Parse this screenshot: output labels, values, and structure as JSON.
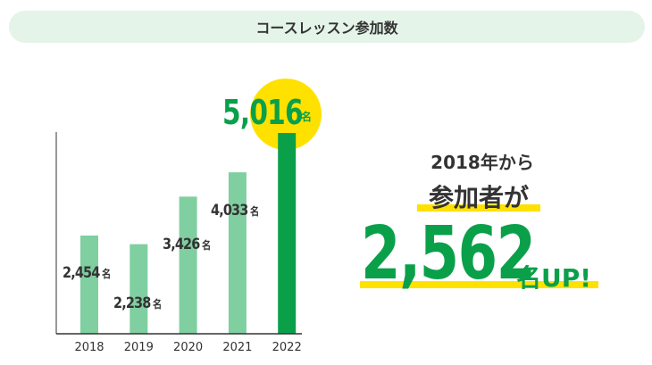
{
  "header": {
    "title": "コースレッスン参加数"
  },
  "chart_data": {
    "type": "bar",
    "categories": [
      "2018",
      "2019",
      "2020",
      "2021",
      "2022"
    ],
    "values": [
      2454,
      2238,
      3426,
      4033,
      5016
    ],
    "value_labels": [
      "2,454",
      "2,238",
      "3,426",
      "4,033",
      "5,016"
    ],
    "unit": "名",
    "highlight": "2022",
    "colors": {
      "bar": "#7fcfa0",
      "highlight": "#0aa04a",
      "circle": "#ffe100"
    },
    "ylim": [
      0,
      5016
    ]
  },
  "summary": {
    "line1": "2018年から",
    "line2": "参加者が",
    "number": "2,562",
    "suffix": "名UP!"
  }
}
